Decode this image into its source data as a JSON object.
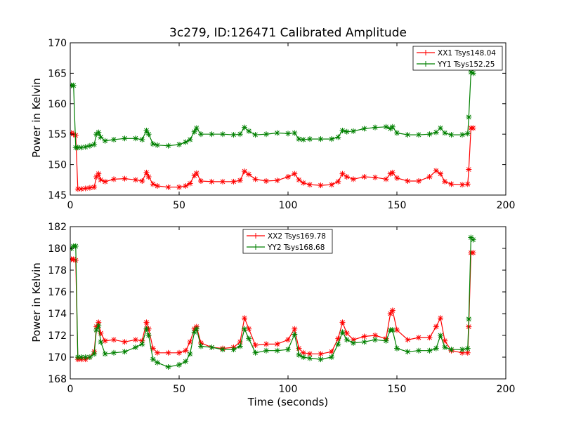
{
  "chart_data": [
    {
      "type": "line",
      "title": "3c279, ID:126471 Calibrated Amplitude",
      "xlabel": "",
      "ylabel": "Power in Kelvin",
      "xlim": [
        0,
        200
      ],
      "ylim": [
        145,
        170
      ],
      "x_ticks": [
        0,
        50,
        100,
        150,
        200
      ],
      "y_ticks": [
        145,
        150,
        155,
        160,
        165,
        170
      ],
      "grid": false,
      "legend_position": "top-right",
      "marker": "plus-star",
      "series": [
        {
          "name": "XX1 Tsys148.04",
          "color": "#ff0000",
          "x": [
            0.5,
            1.5,
            2.5,
            3.5,
            5,
            7,
            9,
            11,
            12,
            13,
            14,
            16,
            20,
            25,
            30,
            33,
            35,
            36,
            38,
            40,
            45,
            50,
            53,
            55,
            57,
            58,
            60,
            65,
            70,
            75,
            78,
            80,
            82,
            85,
            90,
            95,
            100,
            103,
            105,
            107,
            110,
            115,
            120,
            123,
            125,
            127,
            130,
            135,
            140,
            145,
            147,
            148,
            150,
            155,
            160,
            165,
            168,
            170,
            172,
            175,
            180,
            182.5,
            183,
            184,
            185
          ],
          "y": [
            155.2,
            155.0,
            154.8,
            146.0,
            146.0,
            146.1,
            146.2,
            146.3,
            148.0,
            148.5,
            147.5,
            147.2,
            147.6,
            147.7,
            147.5,
            147.3,
            148.7,
            148.0,
            146.8,
            146.5,
            146.3,
            146.3,
            146.5,
            146.9,
            148.2,
            148.6,
            147.3,
            147.2,
            147.2,
            147.2,
            147.4,
            148.9,
            148.4,
            147.6,
            147.3,
            147.4,
            148.0,
            148.5,
            147.5,
            147.0,
            146.7,
            146.6,
            146.7,
            147.2,
            148.5,
            148.0,
            147.6,
            148.0,
            147.9,
            147.6,
            148.5,
            148.7,
            147.8,
            147.3,
            147.3,
            148.0,
            149.0,
            148.5,
            147.2,
            146.8,
            146.7,
            146.8,
            149.2,
            156.0,
            156.0
          ]
        },
        {
          "name": "YY1 Tsys152.25",
          "color": "#008000",
          "x": [
            0.5,
            1.5,
            2.5,
            3.5,
            5,
            7,
            9,
            11,
            12,
            13,
            14,
            16,
            20,
            25,
            30,
            33,
            35,
            36,
            38,
            40,
            45,
            50,
            53,
            55,
            57,
            58,
            60,
            65,
            70,
            75,
            78,
            80,
            82,
            85,
            90,
            95,
            100,
            103,
            105,
            107,
            110,
            115,
            120,
            123,
            125,
            127,
            130,
            135,
            140,
            145,
            147,
            148,
            150,
            155,
            160,
            165,
            168,
            170,
            172,
            175,
            180,
            182.5,
            183,
            184,
            185
          ],
          "y": [
            163.0,
            163.0,
            152.8,
            152.8,
            152.8,
            152.9,
            153.1,
            153.3,
            155.0,
            155.3,
            154.5,
            153.9,
            154.1,
            154.3,
            154.3,
            154.1,
            155.6,
            155.0,
            153.4,
            153.2,
            153.1,
            153.3,
            153.7,
            154.1,
            155.4,
            156.0,
            155.0,
            155.0,
            155.0,
            154.9,
            155.0,
            156.1,
            155.5,
            154.9,
            155.0,
            155.2,
            155.1,
            155.2,
            154.2,
            154.1,
            154.2,
            154.2,
            154.2,
            154.5,
            155.6,
            155.4,
            155.5,
            155.9,
            156.1,
            156.2,
            155.9,
            156.2,
            155.2,
            154.9,
            154.9,
            155.0,
            155.3,
            156.0,
            155.2,
            154.9,
            154.9,
            155.1,
            157.8,
            165.2,
            165.0
          ]
        }
      ]
    },
    {
      "type": "line",
      "title": "",
      "xlabel": "Time (seconds)",
      "ylabel": "Power in Kelvin",
      "xlim": [
        0,
        200
      ],
      "ylim": [
        168,
        182
      ],
      "x_ticks": [
        0,
        50,
        100,
        150,
        200
      ],
      "y_ticks": [
        168,
        170,
        172,
        174,
        176,
        178,
        180,
        182
      ],
      "grid": false,
      "legend_position": "top-center",
      "marker": "plus-star",
      "series": [
        {
          "name": "XX2 Tsys169.78",
          "color": "#ff0000",
          "x": [
            0.5,
            1.5,
            2.5,
            3.5,
            5,
            7,
            9,
            11,
            12,
            13,
            14,
            16,
            20,
            25,
            30,
            33,
            35,
            36,
            38,
            40,
            45,
            50,
            53,
            55,
            57,
            58,
            60,
            65,
            70,
            75,
            78,
            80,
            82,
            85,
            90,
            95,
            100,
            103,
            105,
            107,
            110,
            115,
            120,
            123,
            125,
            127,
            130,
            135,
            140,
            145,
            147,
            148,
            150,
            155,
            160,
            165,
            168,
            170,
            172,
            175,
            180,
            182.5,
            183,
            184,
            185
          ],
          "y": [
            179.0,
            179.0,
            178.9,
            169.8,
            169.8,
            169.8,
            170.0,
            170.5,
            172.8,
            173.2,
            172.2,
            171.5,
            171.6,
            171.4,
            171.6,
            171.5,
            173.2,
            172.6,
            170.8,
            170.4,
            170.4,
            170.4,
            170.6,
            171.4,
            172.6,
            172.8,
            171.3,
            170.9,
            170.8,
            170.9,
            171.4,
            173.6,
            172.6,
            171.1,
            171.2,
            171.2,
            171.6,
            172.6,
            170.8,
            170.4,
            170.3,
            170.3,
            170.5,
            171.7,
            173.2,
            172.2,
            171.6,
            171.9,
            172.0,
            171.7,
            174.0,
            174.3,
            172.5,
            171.6,
            171.8,
            171.8,
            172.8,
            173.6,
            171.5,
            170.6,
            170.4,
            170.4,
            172.8,
            179.6,
            179.6
          ]
        },
        {
          "name": "YY2 Tsys168.68",
          "color": "#008000",
          "x": [
            0.5,
            1.5,
            2.5,
            3.5,
            5,
            7,
            9,
            11,
            12,
            13,
            14,
            16,
            20,
            25,
            30,
            33,
            35,
            36,
            38,
            40,
            45,
            50,
            53,
            55,
            57,
            58,
            60,
            65,
            70,
            75,
            78,
            80,
            82,
            85,
            90,
            95,
            100,
            103,
            105,
            107,
            110,
            115,
            120,
            123,
            125,
            127,
            130,
            135,
            140,
            145,
            147,
            148,
            150,
            155,
            160,
            165,
            168,
            170,
            172,
            175,
            180,
            182.5,
            183,
            184,
            185
          ],
          "y": [
            180.0,
            180.2,
            180.2,
            170.0,
            170.0,
            170.0,
            170.0,
            170.3,
            172.5,
            172.9,
            171.4,
            170.3,
            170.4,
            170.5,
            170.9,
            171.2,
            172.6,
            172.0,
            169.8,
            169.5,
            169.1,
            169.3,
            169.6,
            170.3,
            172.3,
            172.6,
            171.0,
            170.9,
            170.7,
            170.7,
            171.0,
            172.6,
            171.7,
            170.4,
            170.6,
            170.6,
            170.7,
            172.1,
            170.2,
            170.0,
            169.9,
            169.8,
            170.0,
            171.2,
            172.3,
            171.6,
            171.3,
            171.4,
            171.6,
            171.5,
            172.5,
            172.5,
            170.8,
            170.5,
            170.6,
            170.6,
            170.8,
            172.0,
            170.9,
            170.7,
            170.7,
            170.8,
            173.5,
            181.0,
            180.8
          ]
        }
      ]
    }
  ]
}
